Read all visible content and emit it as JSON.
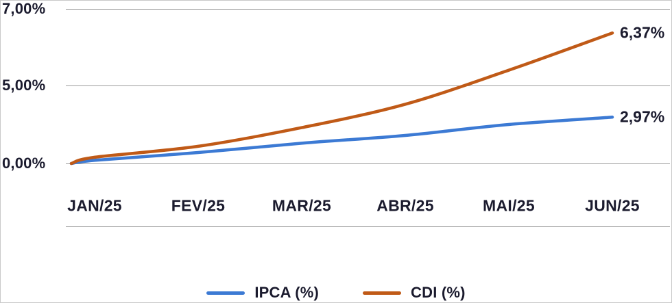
{
  "chart_data": {
    "type": "line",
    "title": "",
    "xlabel": "",
    "ylabel": "",
    "x_labels": [
      "JAN/25",
      "FEV/25",
      "MAR/25",
      "ABR/25",
      "MAI/25",
      "JUN/25"
    ],
    "y_tick_labels": [
      "7,00%",
      "5,00%",
      "0,00%"
    ],
    "y_ticks": [
      7.0,
      5.0,
      0.0
    ],
    "start_value": 0,
    "series": [
      {
        "name": "IPCA (%)",
        "color": "#3c7ad4",
        "values": [
          0.2,
          0.7,
          1.3,
          1.8,
          2.5,
          2.97
        ],
        "end_value": 2.97,
        "end_label": "2,97%"
      },
      {
        "name": "CDI (%)",
        "color": "#c05a17",
        "values": [
          0.4,
          1.1,
          2.3,
          3.8,
          5.4,
          6.37
        ],
        "end_value": 6.37,
        "end_label": "6,37%"
      }
    ],
    "legend": {
      "position": "bottom",
      "items": [
        "IPCA (%)",
        "CDI (%)"
      ]
    },
    "grid": "horizontal",
    "colors": {
      "text": "#1b1b2e",
      "gridline": "#9a9a9a",
      "ipca": "#3c7ad4",
      "cdi": "#c05a17"
    }
  }
}
